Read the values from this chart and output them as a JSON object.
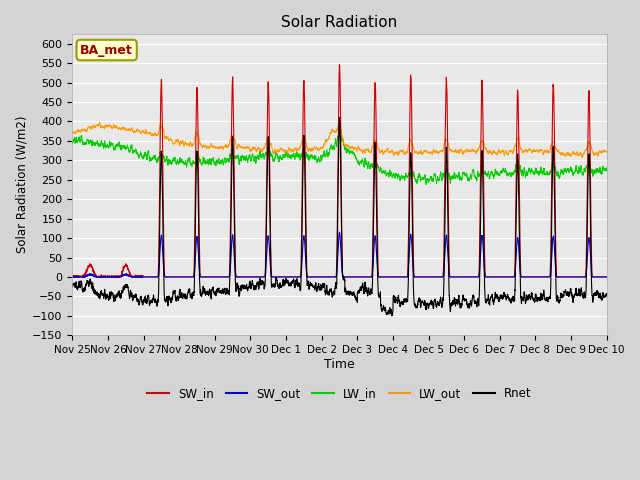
{
  "title": "Solar Radiation",
  "xlabel": "Time",
  "ylabel": "Solar Radiation (W/m2)",
  "ylim": [
    -150,
    625
  ],
  "yticks": [
    -150,
    -100,
    -50,
    0,
    50,
    100,
    150,
    200,
    250,
    300,
    350,
    400,
    450,
    500,
    550,
    600
  ],
  "colors": {
    "SW_in": "#cc0000",
    "SW_out": "#0000cc",
    "LW_in": "#00cc00",
    "LW_out": "#ff9900",
    "Rnet": "#000000"
  },
  "annotation_text": "BA_met",
  "annotation_color": "#990000",
  "annotation_bg": "#ffffcc",
  "annotation_edge": "#999900",
  "fig_bg": "#d4d4d4",
  "plot_bg": "#e8e8e8",
  "grid_color": "#ffffff",
  "tick_labels": [
    "Nov 25",
    "Nov 26",
    "Nov 27",
    "Nov 28",
    "Nov 29",
    "Nov 30",
    "Dec 1",
    "Dec 2",
    "Dec 3",
    "Dec 4",
    "Dec 5",
    "Dec 6",
    "Dec 7",
    "Dec 8",
    "Dec 9",
    "Dec 10"
  ]
}
